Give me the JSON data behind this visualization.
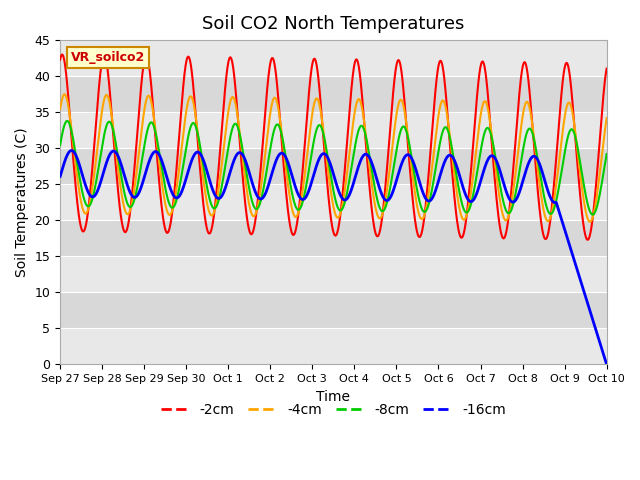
{
  "title": "Soil CO2 North Temperatures",
  "xlabel": "Time",
  "ylabel": "Soil Temperatures (C)",
  "ylim": [
    0,
    45
  ],
  "series_labels": [
    "-2cm",
    "-4cm",
    "-8cm",
    "-16cm"
  ],
  "series_colors": [
    "#ff0000",
    "#ffa500",
    "#00cc00",
    "#0000ff"
  ],
  "series_linewidths": [
    1.5,
    1.5,
    1.5,
    2.0
  ],
  "xtick_labels": [
    "Sep 27",
    "Sep 28",
    "Sep 29",
    "Sep 30",
    "Oct 1",
    "Oct 2",
    "Oct 3",
    "Oct 4",
    "Oct 5",
    "Oct 6",
    "Oct 7",
    "Oct 8",
    "Oct 9",
    "Oct 10"
  ],
  "annotation_label": "VR_soilco2",
  "bg_color_light": "#e8e8e8",
  "bg_color_dark": "#d0d0d0",
  "fig_bg_color": "#ffffff",
  "band_colors": [
    "#e8e8e8",
    "#d8d8d8"
  ],
  "ytick_vals": [
    0,
    5,
    10,
    15,
    20,
    25,
    30,
    35,
    40,
    45
  ]
}
